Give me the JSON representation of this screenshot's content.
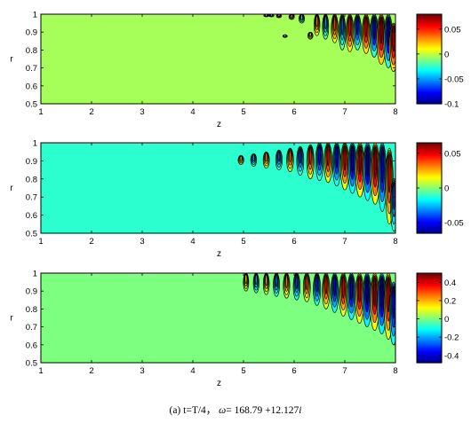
{
  "chart_data": [
    {
      "type": "contour",
      "xlabel": "z",
      "ylabel": "r",
      "xlim": [
        1,
        8
      ],
      "ylim": [
        0.5,
        1
      ],
      "xticks": [
        "1",
        "2",
        "3",
        "4",
        "5",
        "6",
        "7",
        "8"
      ],
      "yticks": [
        "0.5",
        "0.6",
        "0.7",
        "0.8",
        "0.9",
        "1"
      ],
      "background_color": "#a6ff59",
      "colorbar": {
        "min": -0.1,
        "max": 0.08,
        "ticks": [
          "0.05",
          "0",
          "-0.05",
          "-0.1"
        ],
        "tick_values": [
          0.05,
          0,
          -0.05,
          -0.1
        ]
      },
      "structures": [
        {
          "z": 5.45,
          "r_top": 1.0,
          "r_bottom": 0.985,
          "amp": 0.3
        },
        {
          "z": 5.55,
          "r_top": 1.0,
          "r_bottom": 0.985,
          "amp": -0.3
        },
        {
          "z": 5.7,
          "r_top": 1.0,
          "r_bottom": 0.98,
          "amp": 0.3
        },
        {
          "z": 5.82,
          "r_top": 0.885,
          "r_bottom": 0.87,
          "amp": -0.2
        },
        {
          "z": 5.95,
          "r_top": 1.0,
          "r_bottom": 0.97,
          "amp": 0.35
        },
        {
          "z": 6.15,
          "r_top": 1.0,
          "r_bottom": 0.95,
          "amp": -0.4
        },
        {
          "z": 6.32,
          "r_top": 0.9,
          "r_bottom": 0.86,
          "amp": 0.3
        },
        {
          "z": 6.45,
          "r_top": 1.0,
          "r_bottom": 0.88,
          "amp": 0.45
        },
        {
          "z": 6.62,
          "r_top": 1.0,
          "r_bottom": 0.86,
          "amp": -0.5
        },
        {
          "z": 6.8,
          "r_top": 1.0,
          "r_bottom": 0.84,
          "amp": 0.6
        },
        {
          "z": 6.95,
          "r_top": 1.0,
          "r_bottom": 0.8,
          "amp": -0.6
        },
        {
          "z": 7.1,
          "r_top": 1.0,
          "r_bottom": 0.79,
          "amp": 0.75
        },
        {
          "z": 7.25,
          "r_top": 1.0,
          "r_bottom": 0.8,
          "amp": -0.8
        },
        {
          "z": 7.42,
          "r_top": 1.0,
          "r_bottom": 0.78,
          "amp": 0.85
        },
        {
          "z": 7.58,
          "r_top": 1.0,
          "r_bottom": 0.76,
          "amp": -0.95
        },
        {
          "z": 7.72,
          "r_top": 1.0,
          "r_bottom": 0.72,
          "amp": 1.0
        },
        {
          "z": 7.86,
          "r_top": 1.0,
          "r_bottom": 0.7,
          "amp": -1.0
        },
        {
          "z": 7.96,
          "r_top": 0.95,
          "r_bottom": 0.68,
          "amp": 0.9
        }
      ]
    },
    {
      "type": "contour",
      "xlabel": "z",
      "ylabel": "r",
      "xlim": [
        1,
        8
      ],
      "ylim": [
        0.5,
        1
      ],
      "xticks": [
        "1",
        "2",
        "3",
        "4",
        "5",
        "6",
        "7",
        "8"
      ],
      "yticks": [
        "0.5",
        "0.6",
        "0.7",
        "0.8",
        "0.9",
        "1"
      ],
      "background_color": "#2bffd0",
      "colorbar": {
        "min": -0.065,
        "max": 0.065,
        "ticks": [
          "0.05",
          "0",
          "-0.05"
        ],
        "tick_values": [
          0.05,
          0,
          -0.05
        ]
      },
      "structures": [
        {
          "z": 4.95,
          "r_top": 0.93,
          "r_bottom": 0.88,
          "amp": 0.4
        },
        {
          "z": 5.2,
          "r_top": 0.94,
          "r_bottom": 0.87,
          "amp": -0.45
        },
        {
          "z": 5.45,
          "r_top": 0.95,
          "r_bottom": 0.86,
          "amp": 0.5
        },
        {
          "z": 5.7,
          "r_top": 0.96,
          "r_bottom": 0.85,
          "amp": -0.55
        },
        {
          "z": 5.92,
          "r_top": 0.97,
          "r_bottom": 0.84,
          "amp": 0.6
        },
        {
          "z": 6.12,
          "r_top": 0.98,
          "r_bottom": 0.82,
          "amp": -0.65
        },
        {
          "z": 6.32,
          "r_top": 0.99,
          "r_bottom": 0.8,
          "amp": 0.7
        },
        {
          "z": 6.5,
          "r_top": 1.0,
          "r_bottom": 0.79,
          "amp": -0.75
        },
        {
          "z": 6.67,
          "r_top": 1.0,
          "r_bottom": 0.78,
          "amp": 0.8
        },
        {
          "z": 6.84,
          "r_top": 1.0,
          "r_bottom": 0.76,
          "amp": -0.85
        },
        {
          "z": 7.0,
          "r_top": 1.0,
          "r_bottom": 0.74,
          "amp": 0.9
        },
        {
          "z": 7.15,
          "r_top": 1.0,
          "r_bottom": 0.72,
          "amp": -0.95
        },
        {
          "z": 7.3,
          "r_top": 1.0,
          "r_bottom": 0.7,
          "amp": 1.0
        },
        {
          "z": 7.45,
          "r_top": 1.0,
          "r_bottom": 0.68,
          "amp": -1.0
        },
        {
          "z": 7.6,
          "r_top": 1.0,
          "r_bottom": 0.66,
          "amp": 1.0
        },
        {
          "z": 7.74,
          "r_top": 1.0,
          "r_bottom": 0.62,
          "amp": -0.9
        },
        {
          "z": 7.88,
          "r_top": 0.97,
          "r_bottom": 0.55,
          "amp": 0.8
        },
        {
          "z": 7.97,
          "r_top": 0.8,
          "r_bottom": 0.51,
          "amp": -0.6
        }
      ]
    },
    {
      "type": "contour",
      "xlabel": "z",
      "ylabel": "r",
      "xlim": [
        1,
        8
      ],
      "ylim": [
        0.5,
        1
      ],
      "xticks": [
        "1",
        "2",
        "3",
        "4",
        "5",
        "6",
        "7",
        "8"
      ],
      "yticks": [
        "0.5",
        "0.6",
        "0.7",
        "0.8",
        "0.9",
        "1"
      ],
      "background_color": "#7dff7f",
      "colorbar": {
        "min": -0.48,
        "max": 0.5,
        "ticks": [
          "0.4",
          "0.2",
          "0",
          "-0.2",
          "-0.4"
        ],
        "tick_values": [
          0.4,
          0.2,
          0,
          -0.2,
          -0.4
        ]
      },
      "structures": [
        {
          "z": 5.05,
          "r_top": 1.0,
          "r_bottom": 0.9,
          "amp": 0.35
        },
        {
          "z": 5.25,
          "r_top": 1.0,
          "r_bottom": 0.89,
          "amp": -0.4
        },
        {
          "z": 5.45,
          "r_top": 1.0,
          "r_bottom": 0.88,
          "amp": 0.45
        },
        {
          "z": 5.65,
          "r_top": 1.0,
          "r_bottom": 0.87,
          "amp": -0.5
        },
        {
          "z": 5.85,
          "r_top": 1.0,
          "r_bottom": 0.86,
          "amp": 0.55
        },
        {
          "z": 6.05,
          "r_top": 1.0,
          "r_bottom": 0.85,
          "amp": -0.6
        },
        {
          "z": 6.25,
          "r_top": 1.0,
          "r_bottom": 0.84,
          "amp": 0.65
        },
        {
          "z": 6.45,
          "r_top": 1.0,
          "r_bottom": 0.82,
          "amp": -0.7
        },
        {
          "z": 6.63,
          "r_top": 1.0,
          "r_bottom": 0.8,
          "amp": 0.75
        },
        {
          "z": 6.8,
          "r_top": 1.0,
          "r_bottom": 0.78,
          "amp": -0.8
        },
        {
          "z": 6.97,
          "r_top": 1.0,
          "r_bottom": 0.76,
          "amp": 0.85
        },
        {
          "z": 7.13,
          "r_top": 1.0,
          "r_bottom": 0.74,
          "amp": -0.9
        },
        {
          "z": 7.29,
          "r_top": 1.0,
          "r_bottom": 0.72,
          "amp": 0.95
        },
        {
          "z": 7.44,
          "r_top": 1.0,
          "r_bottom": 0.7,
          "amp": -1.0
        },
        {
          "z": 7.59,
          "r_top": 1.0,
          "r_bottom": 0.68,
          "amp": 1.0
        },
        {
          "z": 7.73,
          "r_top": 1.0,
          "r_bottom": 0.66,
          "amp": -1.0
        },
        {
          "z": 7.86,
          "r_top": 1.0,
          "r_bottom": 0.63,
          "amp": 0.9
        },
        {
          "z": 7.96,
          "r_top": 0.95,
          "r_bottom": 0.6,
          "amp": -0.8
        }
      ]
    }
  ],
  "caption": {
    "prefix": "(a) t=T/4，",
    "omega_symbol": "ω",
    "equals": "= 168.79 +12.127",
    "imag_unit": "i"
  }
}
